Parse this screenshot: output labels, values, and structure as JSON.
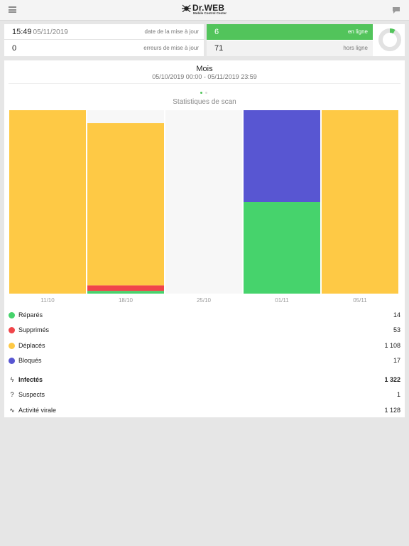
{
  "header": {
    "logo_text": "Dr.WEB",
    "logo_subtitle": "Mobile Control Center",
    "menu_icon": "hamburger-icon",
    "chat_icon": "chat-bubble-icon"
  },
  "summary": {
    "last_update_time": "15:49",
    "last_update_date": "05/11/2019",
    "last_update_label": "date de la mise à jour",
    "update_errors_count": "0",
    "update_errors_label": "erreurs de mise à jour",
    "online_count": "6",
    "online_label": "en ligne",
    "offline_count": "71",
    "offline_label": "hors ligne",
    "online_fraction": 0.078,
    "online_color": "#52c45b"
  },
  "period": {
    "title": "Mois",
    "range": "05/10/2019 00:00 - 05/11/2019 23:59"
  },
  "pager": {
    "pages": 2,
    "active": 0
  },
  "chart_data": {
    "type": "bar",
    "stacked": true,
    "normalized": true,
    "title": "Statistiques de scan",
    "categories": [
      "11/10",
      "18/10",
      "25/10",
      "01/11",
      "05/11"
    ],
    "series": [
      {
        "name": "Réparés",
        "color": "#46d36c",
        "values": [
          0,
          0.015,
          0,
          0.5,
          0
        ]
      },
      {
        "name": "Supprimés",
        "color": "#f0454a",
        "values": [
          0,
          0.03,
          0,
          0,
          0
        ]
      },
      {
        "name": "Déplacés",
        "color": "#fec945",
        "values": [
          1,
          0.885,
          0,
          0,
          1
        ]
      },
      {
        "name": "Bloqués",
        "color": "#5856d2",
        "values": [
          0,
          0,
          0,
          0.5,
          0
        ]
      }
    ],
    "ylim": [
      0,
      1
    ],
    "grid": false,
    "legend": "bottom"
  },
  "legend": [
    {
      "name": "Réparés",
      "value": "14",
      "color": "#46d36c"
    },
    {
      "name": "Supprimés",
      "value": "53",
      "color": "#f0454a"
    },
    {
      "name": "Déplacés",
      "value": "1 108",
      "color": "#fec945"
    },
    {
      "name": "Bloqués",
      "value": "17",
      "color": "#5856d2"
    }
  ],
  "threats": [
    {
      "name": "Infectés",
      "value": "1 322",
      "icon": "lightning-icon",
      "glyph": "ϟ"
    },
    {
      "name": "Suspects",
      "value": "1",
      "icon": "question-icon",
      "glyph": "?"
    },
    {
      "name": "Activité virale",
      "value": "1 128",
      "icon": "pulse-icon",
      "glyph": "∿"
    }
  ]
}
